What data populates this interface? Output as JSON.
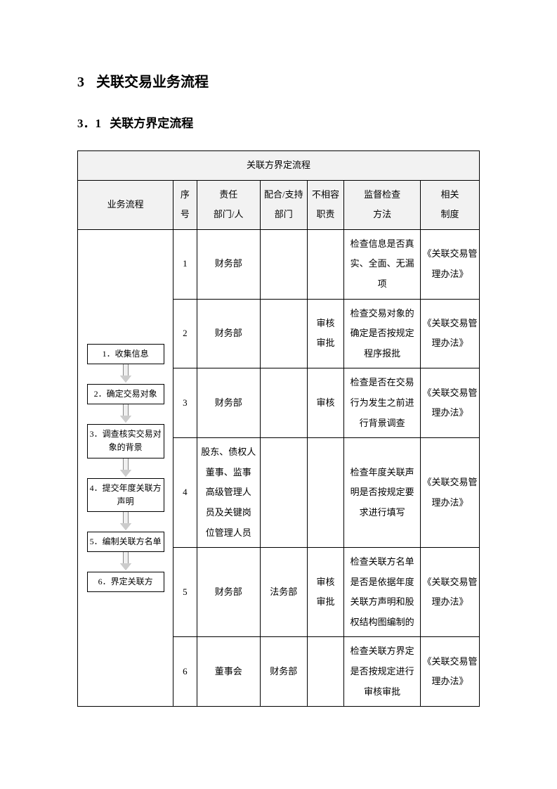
{
  "heading1_num": "3",
  "heading1_text": "关联交易业务流程",
  "heading2_num": "3．1",
  "heading2_text": "关联方界定流程",
  "table": {
    "title": "关联方界定流程",
    "columns": [
      "业务流程",
      "序号",
      "责任部门/人",
      "配合/支持部门",
      "不相容职责",
      "监督检查方法",
      "相关制度"
    ],
    "col_header_lines": {
      "flow": "业务流程",
      "seq1": "序",
      "seq2": "号",
      "dept1": "责任",
      "dept2": "部门/人",
      "supp1": "配合/支持",
      "supp2": "部门",
      "dup1": "不相容",
      "dup2": "职责",
      "chk1": "监督检查",
      "chk2": "方法",
      "reg1": "相关",
      "reg2": "制度"
    },
    "flow_steps": [
      "1．收集信息",
      "2．确定交易对象",
      "3．调查核实交易对象的背景",
      "4．提交年度关联方声明",
      "5．编制关联方名单",
      "6．界定关联方"
    ],
    "rows": [
      {
        "seq": "1",
        "dept": "财务部",
        "supp": "",
        "dup": "",
        "chk": "检查信息是否真实、全面、无漏项",
        "reg": "《关联交易管理办法》"
      },
      {
        "seq": "2",
        "dept": "财务部",
        "supp": "",
        "dup": "审核审批",
        "chk": "检查交易对象的确定是否按规定程序报批",
        "reg": "《关联交易管理办法》"
      },
      {
        "seq": "3",
        "dept": "财务部",
        "supp": "",
        "dup": "审核",
        "chk": "检查是否在交易行为发生之前进行背景调查",
        "reg": "《关联交易管理办法》"
      },
      {
        "seq": "4",
        "dept": "股东、债权人董事、监事高级管理人员及关键岗位管理人员",
        "supp": "",
        "dup": "",
        "chk": "检查年度关联声明是否按规定要求进行填写",
        "reg": "《关联交易管理办法》"
      },
      {
        "seq": "5",
        "dept": "财务部",
        "supp": "法务部",
        "dup": "审核审批",
        "chk": "检查关联方名单是否是依据年度关联方声明和股权结构图编制的",
        "reg": "《关联交易管理办法》"
      },
      {
        "seq": "6",
        "dept": "董事会",
        "supp": "财务部",
        "dup": "",
        "chk": "检查关联方界定是否按规定进行审核审批",
        "reg": "《关联交易管理办法》"
      }
    ]
  },
  "style": {
    "background": "#ffffff",
    "border_color": "#000000",
    "header_bg": "#e9e9e9",
    "font_size_body": 13,
    "font_size_heading1": 20,
    "font_size_heading2": 17
  }
}
